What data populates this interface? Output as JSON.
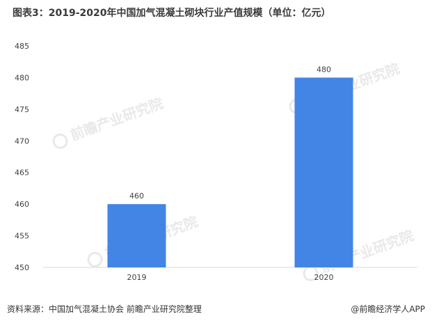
{
  "title": "图表3：2019-2020年中国加气混凝土砌块行业产值规模（单位：亿元）",
  "footer": {
    "source": "资料来源：中国加气混凝土协会 前瞻产业研究院整理",
    "brand": "@前瞻经济学人APP"
  },
  "watermark_text": "前瞻产业研究院",
  "chart_data": {
    "type": "bar",
    "title": "图表3：2019-2020年中国加气混凝土砌块行业产值规模（单位：亿元）",
    "categories": [
      "2019",
      "2020"
    ],
    "values": [
      460,
      480
    ],
    "value_labels": [
      "460",
      "480"
    ],
    "ylim": [
      450,
      485
    ],
    "yticks": [
      450,
      455,
      460,
      465,
      470,
      475,
      480,
      485
    ],
    "ytick_labels": [
      "450",
      "455",
      "460",
      "465",
      "470",
      "475",
      "480",
      "485"
    ],
    "grid": false,
    "legend": "none",
    "bar_color": "#4285E4",
    "axis_color": "#d9d9d9"
  }
}
